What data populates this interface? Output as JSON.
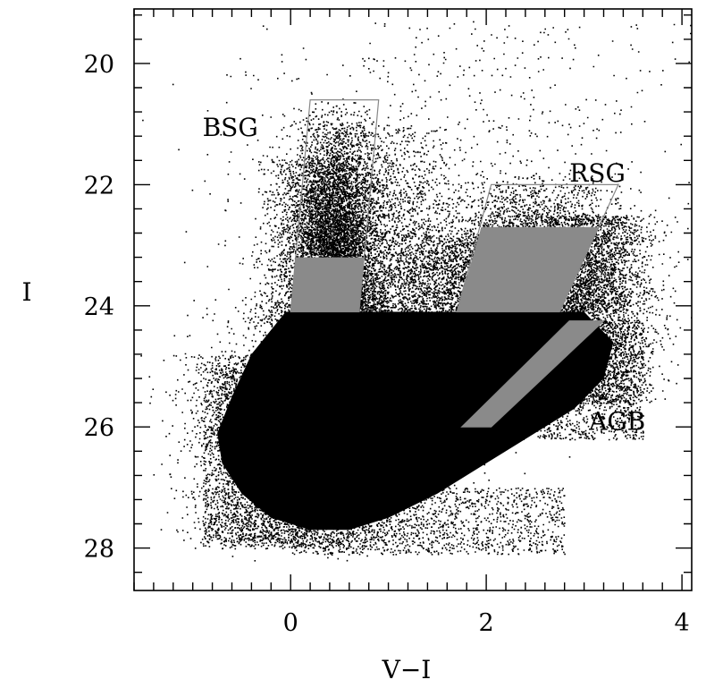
{
  "chart_data": {
    "type": "scatter",
    "title": "",
    "xlabel": "V−I",
    "ylabel": "I",
    "xlim": [
      -1.6,
      4.1
    ],
    "ylim": [
      19.1,
      28.7
    ],
    "y_inverted": true,
    "grid": false,
    "x_major_ticks": [
      0,
      2,
      4
    ],
    "x_minor_tick_step": 0.2,
    "y_major_ticks": [
      20,
      22,
      24,
      26,
      28
    ],
    "y_minor_tick_step": 0.4,
    "x_tick_labels": [
      "0",
      "2",
      "4"
    ],
    "y_tick_labels": [
      "20",
      "22",
      "24",
      "26",
      "28"
    ],
    "point_color": "#000000",
    "dense_region_color": "#000000",
    "selection_outline_color": "#888888",
    "selection_fill_color": "#8a8a8a",
    "dense_core_polygon": [
      [
        -0.05,
        24.1
      ],
      [
        3.0,
        24.1
      ],
      [
        3.3,
        24.6
      ],
      [
        3.2,
        25.2
      ],
      [
        2.9,
        25.7
      ],
      [
        2.5,
        26.1
      ],
      [
        2.0,
        26.6
      ],
      [
        1.5,
        27.1
      ],
      [
        1.0,
        27.5
      ],
      [
        0.6,
        27.7
      ],
      [
        0.2,
        27.7
      ],
      [
        -0.2,
        27.5
      ],
      [
        -0.5,
        27.1
      ],
      [
        -0.7,
        26.6
      ],
      [
        -0.75,
        26.1
      ],
      [
        -0.6,
        25.5
      ],
      [
        -0.4,
        24.8
      ]
    ],
    "point_clouds": [
      {
        "n": 5000,
        "x_mean": 0.45,
        "x_sd": 0.22,
        "y_min": 20.6,
        "y_max": 24.1,
        "y_shape": 2.0
      },
      {
        "n": 3000,
        "x_mean": 0.35,
        "x_sd": 0.3,
        "y_min": 21.5,
        "y_max": 24.3,
        "y_shape": 1.3
      },
      {
        "n": 1500,
        "x_mean": 1.1,
        "x_sd": 0.35,
        "y_min": 21.0,
        "y_max": 24.2,
        "y_shape": 1.3
      },
      {
        "n": 4000,
        "x_mean": 2.45,
        "x_sd": 0.45,
        "y_min": 21.8,
        "y_max": 24.1,
        "y_shape": 1.8
      },
      {
        "n": 2000,
        "x_mean": 1.8,
        "x_sd": 0.5,
        "y_min": 22.8,
        "y_max": 24.2,
        "y_shape": 1.2
      },
      {
        "n": 3500,
        "x_mean": 3.1,
        "x_sd": 0.3,
        "y_min": 22.5,
        "y_max": 25.6,
        "y_shape": 1.0
      },
      {
        "n": 3000,
        "x_mean": 0.3,
        "x_sd": 0.45,
        "y_min": 24.0,
        "y_max": 28.0,
        "y_shape": 1.0
      },
      {
        "n": 2500,
        "x_mean": -0.35,
        "x_sd": 0.35,
        "y_min": 24.8,
        "y_max": 27.9,
        "y_shape": 1.0
      },
      {
        "n": 600,
        "x_mean": 0.6,
        "x_sd": 0.8,
        "y_min": 19.8,
        "y_max": 28.2,
        "y_shape": 1.0
      },
      {
        "n": 400,
        "x_mean": 2.2,
        "x_sd": 1.0,
        "y_min": 19.3,
        "y_max": 23.0,
        "y_shape": 1.0
      }
    ],
    "edge_band": [
      {
        "x_from": -0.9,
        "x_to": 0.2,
        "y_from": 25.0,
        "y_to": 28.0
      },
      {
        "x_from": 0.0,
        "x_to": 2.8,
        "y_from": 27.0,
        "y_to": 28.1
      },
      {
        "x_from": 2.5,
        "x_to": 3.6,
        "y_from": 24.2,
        "y_to": 26.2
      }
    ],
    "regions": [
      {
        "name": "BSG",
        "polygon_top": [
          [
            0.2,
            20.6
          ],
          [
            0.9,
            20.6
          ],
          [
            0.7,
            24.1
          ],
          [
            0.0,
            24.1
          ]
        ],
        "filled_part": [
          [
            0.05,
            23.2
          ],
          [
            0.75,
            23.2
          ],
          [
            0.7,
            24.1
          ],
          [
            0.0,
            24.1
          ]
        ],
        "label_at": [
          -0.9,
          21.05
        ]
      },
      {
        "name": "RSG",
        "polygon_top": [
          [
            2.05,
            22.0
          ],
          [
            3.35,
            22.0
          ],
          [
            2.75,
            24.1
          ],
          [
            1.7,
            24.1
          ]
        ],
        "filled_part": [
          [
            1.95,
            22.7
          ],
          [
            3.15,
            22.7
          ],
          [
            2.75,
            24.1
          ],
          [
            1.7,
            24.1
          ]
        ],
        "label_at": [
          2.85,
          21.8
        ]
      },
      {
        "name": "AGB",
        "polygon_top": [
          [
            2.85,
            24.25
          ],
          [
            3.2,
            24.25
          ],
          [
            2.05,
            26.0
          ],
          [
            1.75,
            26.0
          ]
        ],
        "filled_part": [
          [
            2.85,
            24.25
          ],
          [
            3.2,
            24.25
          ],
          [
            2.05,
            26.0
          ],
          [
            1.75,
            26.0
          ]
        ],
        "label_at": [
          3.05,
          25.9
        ]
      }
    ]
  }
}
